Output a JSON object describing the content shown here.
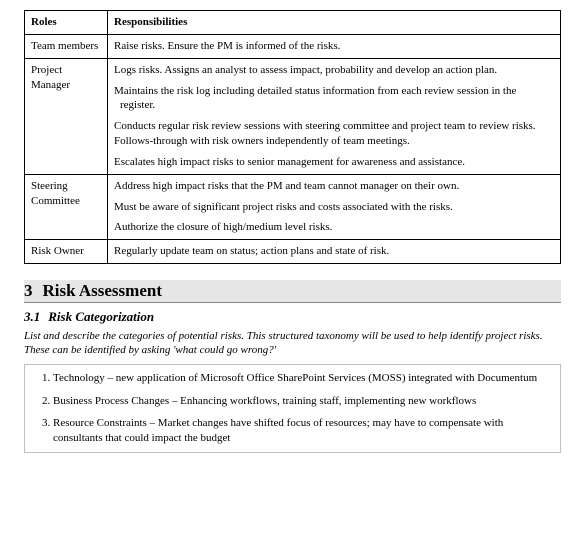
{
  "table": {
    "headers": {
      "roles": "Roles",
      "resp": "Responsibilities"
    },
    "rows": [
      {
        "role": "Team members",
        "resp": [
          "Raise risks. Ensure the PM is informed of the risks."
        ]
      },
      {
        "role": "Project Manager",
        "resp": [
          "Logs risks. Assigns an analyst to assess impact, probability and develop an action plan.",
          "Maintains the risk log including detailed status information from each review session in the",
          " register.",
          "Conducts regular risk review sessions with steering committee and project team to review risks. Follows-through with risk owners independently of team meetings.",
          "Escalates high impact risks to senior management for awareness and assistance."
        ]
      },
      {
        "role": "Steering Committee",
        "resp": [
          "Address high impact risks that the PM and team cannot manager on their own.",
          "Must be aware of significant project risks and costs associated with the risks.",
          "Authorize the closure of high/medium level risks."
        ]
      },
      {
        "role": "Risk Owner",
        "resp": [
          "Regularly update team on status; action plans and state of risk."
        ]
      }
    ]
  },
  "section": {
    "num": "3",
    "title": "Risk Assessment"
  },
  "subsection": {
    "num": "3.1",
    "title": "Risk Categorization"
  },
  "desc": "List and describe the categories of potential risks.  This structured taxonomy will be used to help identify project risks. These can be identified by asking 'what could go wrong?'",
  "categories": [
    "Technology – new application of Microsoft Office SharePoint Services (MOSS) integrated with Documentum",
    "Business Process Changes – Enhancing workflows, training staff, implementing new workflows",
    "Resource Constraints – Market changes have shifted focus of resources; may have to compensate with consultants that could impact the budget"
  ]
}
